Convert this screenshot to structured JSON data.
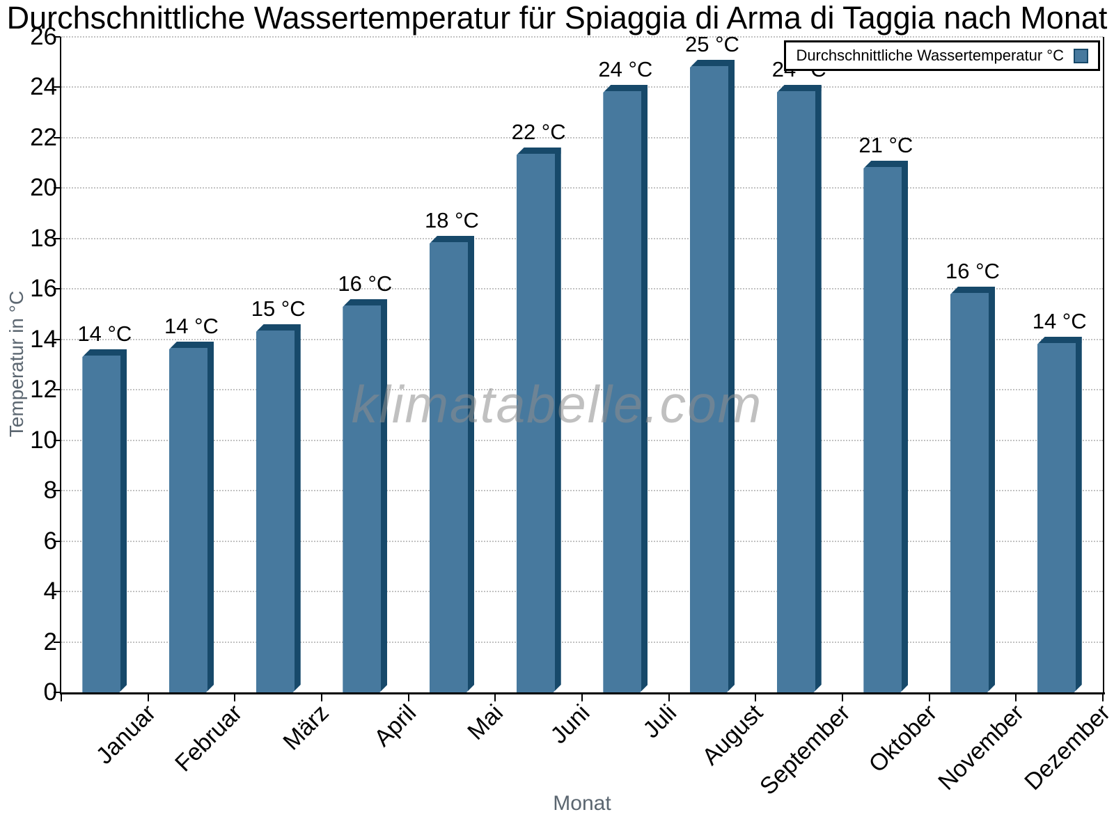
{
  "page_title": "Durchschnittliche Wassertemperatur für Spiaggia di Arma di Taggia nach Monat",
  "legend": {
    "label": "Durchschnittliche Wassertemperatur °C",
    "swatch_color": "#47799E"
  },
  "watermark": "klimatabelle.com",
  "axes": {
    "y_title": "Temperatur in °C",
    "x_title": "Monat"
  },
  "chart_data": {
    "type": "bar",
    "title": "Durchschnittliche Wassertemperatur für Spiaggia di Arma di Taggia nach Monat",
    "xlabel": "Monat",
    "ylabel": "Temperatur in °C",
    "ylim": [
      0,
      26
    ],
    "yticks": [
      0,
      2,
      4,
      6,
      8,
      10,
      12,
      14,
      16,
      18,
      20,
      22,
      24,
      26
    ],
    "grid": "horizontal dotted gridlines at every y tick",
    "legend_position": "top-right",
    "categories": [
      "Januar",
      "Februar",
      "März",
      "April",
      "Mai",
      "Juni",
      "Juli",
      "August",
      "September",
      "Oktober",
      "November",
      "Dezember"
    ],
    "series": [
      {
        "name": "Durchschnittliche Wassertemperatur °C",
        "values": [
          13.6,
          13.9,
          14.6,
          15.6,
          18.1,
          21.6,
          24.1,
          25.1,
          24.1,
          21.1,
          16.1,
          14.1
        ],
        "value_labels": [
          "14 °C",
          "14 °C",
          "15 °C",
          "16 °C",
          "18 °C",
          "22 °C",
          "24 °C",
          "25 °C",
          "24 °C",
          "21 °C",
          "16 °C",
          "14 °C"
        ]
      }
    ],
    "colors": {
      "bar_face": "#47799E",
      "bar_edge": "#17496A",
      "gridline": "#C2C2C2",
      "axis": "#000000",
      "axis_title": "#5B6670",
      "watermark": "#8E8E8E"
    }
  }
}
